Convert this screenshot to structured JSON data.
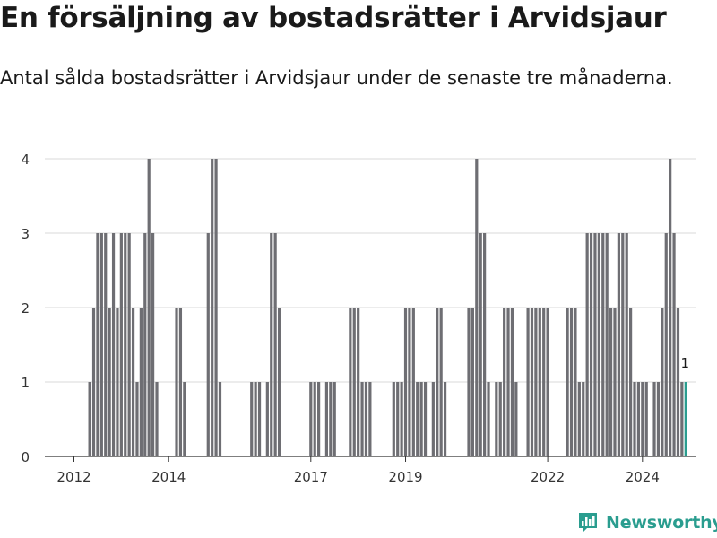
{
  "header": {
    "title": "En försäljning av bostadsrätter i Arvidsjaur",
    "subtitle": "Antal sålda bostadsrätter i Arvidsjaur under de senaste tre månaderna."
  },
  "brand": {
    "name": "Newsworthy",
    "color": "#2a9d8f"
  },
  "colors": {
    "bar": "#6e6e73",
    "highlight": "#2a9d8f",
    "grid": "#d9d9d9",
    "axis": "#333333"
  },
  "chart_data": {
    "type": "bar",
    "title": "En försäljning av bostadsrätter i Arvidsjaur",
    "xlabel": "",
    "ylabel": "",
    "ylim": [
      0,
      4
    ],
    "yticks": [
      "0",
      "1",
      "2",
      "3",
      "4"
    ],
    "xticks": [
      {
        "label": "2012",
        "index": 0
      },
      {
        "label": "2014",
        "index": 24
      },
      {
        "label": "2017",
        "index": 60
      },
      {
        "label": "2019",
        "index": 84
      },
      {
        "label": "2022",
        "index": 120
      },
      {
        "label": "2024",
        "index": 144
      }
    ],
    "start": "2012-01",
    "period": "month",
    "values": [
      0,
      0,
      0,
      0,
      1,
      2,
      3,
      3,
      3,
      2,
      3,
      2,
      3,
      3,
      3,
      2,
      1,
      2,
      3,
      4,
      3,
      1,
      0,
      0,
      0,
      0,
      2,
      2,
      1,
      0,
      0,
      0,
      0,
      0,
      3,
      4,
      4,
      1,
      0,
      0,
      0,
      0,
      0,
      0,
      0,
      1,
      1,
      1,
      0,
      1,
      3,
      3,
      2,
      0,
      0,
      0,
      0,
      0,
      0,
      0,
      1,
      1,
      1,
      0,
      1,
      1,
      1,
      0,
      0,
      0,
      2,
      2,
      2,
      1,
      1,
      1,
      0,
      0,
      0,
      0,
      0,
      1,
      1,
      1,
      2,
      2,
      2,
      1,
      1,
      1,
      0,
      1,
      2,
      2,
      1,
      0,
      0,
      0,
      0,
      0,
      2,
      2,
      4,
      3,
      3,
      1,
      0,
      1,
      1,
      2,
      2,
      2,
      1,
      0,
      0,
      2,
      2,
      2,
      2,
      2,
      2,
      0,
      0,
      0,
      0,
      2,
      2,
      2,
      1,
      1,
      3,
      3,
      3,
      3,
      3,
      3,
      2,
      2,
      3,
      3,
      3,
      2,
      1,
      1,
      1,
      1,
      0,
      1,
      1,
      2,
      3,
      4,
      3,
      2,
      1,
      1
    ],
    "last_label": "1"
  }
}
